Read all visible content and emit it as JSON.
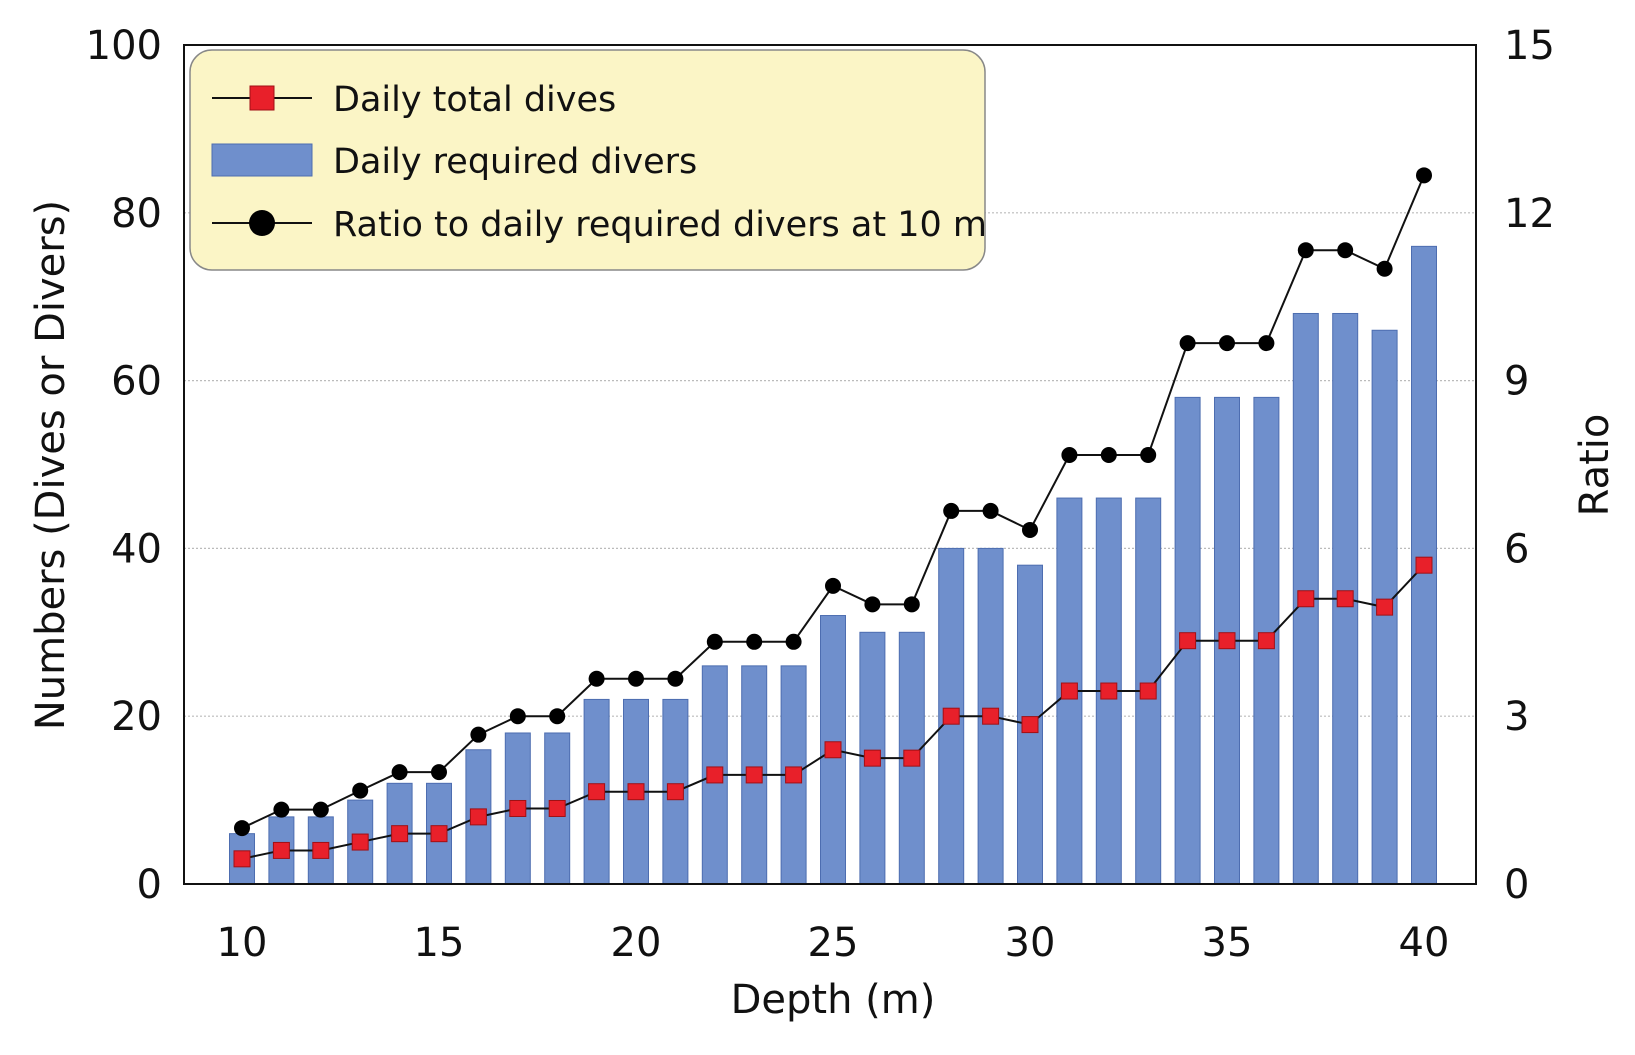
{
  "chart_data": {
    "type": "bar",
    "title": "",
    "xlabel": "Depth (m)",
    "ylabel": "Numbers (Dives or Divers)",
    "y2label": "Ratio",
    "xlim": [
      8.5,
      41.5
    ],
    "ylim": [
      0,
      100
    ],
    "y2lim": [
      0,
      15
    ],
    "xticks": [
      10,
      15,
      20,
      25,
      30,
      35,
      40
    ],
    "yticks": [
      0,
      20,
      40,
      60,
      80,
      100
    ],
    "y2ticks": [
      0,
      3,
      6,
      9,
      12,
      15
    ],
    "grid": true,
    "legend_position": "top-left",
    "x": [
      10,
      11,
      12,
      13,
      14,
      15,
      16,
      17,
      18,
      19,
      20,
      21,
      22,
      23,
      24,
      25,
      26,
      27,
      28,
      29,
      30,
      31,
      32,
      33,
      34,
      35,
      36,
      37,
      38,
      39,
      40
    ],
    "series": [
      {
        "name": "Daily total dives",
        "type": "line",
        "axis": "left",
        "color": "#e8202a",
        "values": [
          3,
          4,
          4,
          5,
          6,
          6,
          8,
          9,
          9,
          11,
          11,
          11,
          13,
          13,
          13,
          16,
          15,
          15,
          20,
          20,
          19,
          23,
          23,
          23,
          29,
          29,
          29,
          34,
          34,
          33,
          38
        ]
      },
      {
        "name": "Daily required divers",
        "type": "bar",
        "axis": "left",
        "color": "#6f8fcc",
        "values": [
          6,
          8,
          8,
          10,
          12,
          12,
          16,
          18,
          18,
          22,
          22,
          22,
          26,
          26,
          26,
          32,
          30,
          30,
          40,
          40,
          38,
          46,
          46,
          46,
          58,
          58,
          58,
          68,
          68,
          66,
          76
        ]
      },
      {
        "name": "Ratio to daily required divers at 10 m",
        "type": "line",
        "axis": "right",
        "color": "#000000",
        "values": [
          1,
          1.33,
          1.33,
          1.67,
          2,
          2,
          2.67,
          3,
          3,
          3.67,
          3.67,
          3.67,
          4.33,
          4.33,
          4.33,
          5.33,
          5,
          5,
          6.67,
          6.67,
          6.33,
          7.67,
          7.67,
          7.67,
          9.67,
          9.67,
          9.67,
          11.33,
          11.33,
          11,
          12.67
        ]
      }
    ]
  },
  "legend": {
    "dives": "Daily total dives",
    "divers": "Daily required divers",
    "ratio": "Ratio to daily required divers at 10 m"
  }
}
